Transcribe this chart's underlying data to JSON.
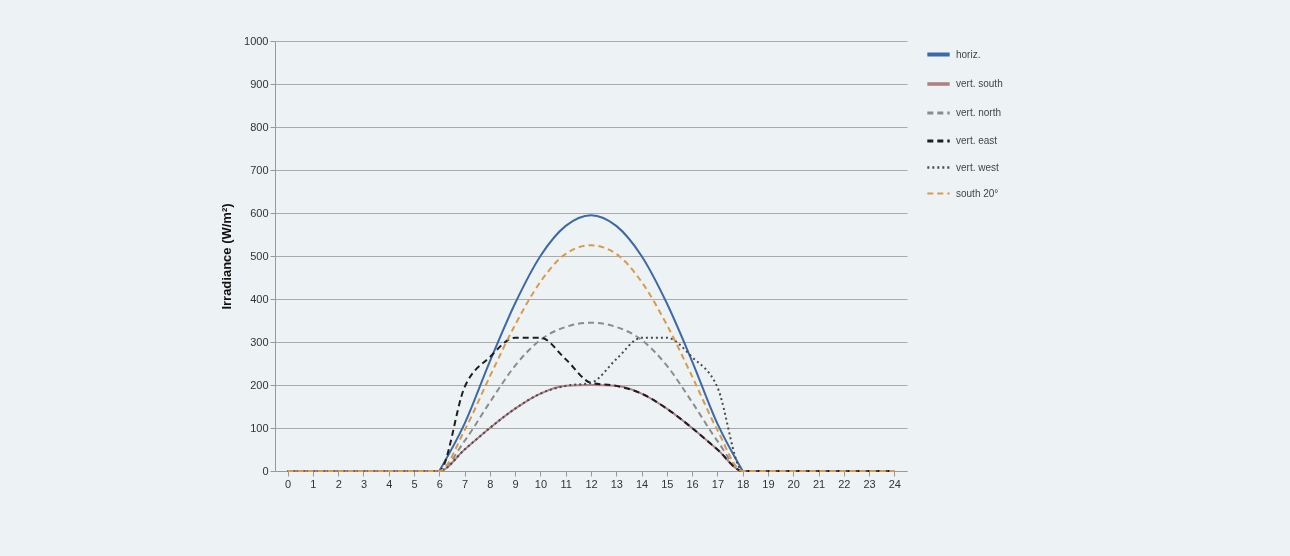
{
  "chart_data": {
    "type": "line",
    "ylabel": "Irradiance (W/m²)",
    "x": [
      0,
      1,
      2,
      3,
      4,
      5,
      6,
      7,
      8,
      9,
      10,
      11,
      12,
      13,
      14,
      15,
      16,
      17,
      18,
      19,
      20,
      21,
      22,
      23,
      24
    ],
    "xlim": [
      -0.5,
      24.5
    ],
    "xticks": [
      0,
      1,
      2,
      3,
      4,
      5,
      6,
      7,
      8,
      9,
      10,
      11,
      12,
      13,
      14,
      15,
      16,
      17,
      18,
      19,
      20,
      21,
      22,
      23,
      24
    ],
    "ylim": [
      0,
      1000
    ],
    "yticks": [
      0,
      100,
      200,
      300,
      400,
      500,
      600,
      700,
      800,
      900,
      1000
    ],
    "grid": "y",
    "legend": "right",
    "marker": "none",
    "series": [
      {
        "name": "horiz.",
        "color": "#3d69a6",
        "line_style": "solid",
        "values": [
          null,
          null,
          null,
          null,
          null,
          null,
          0,
          110,
          255,
          390,
          500,
          570,
          595,
          570,
          500,
          390,
          255,
          110,
          0,
          null,
          null,
          null,
          null,
          null,
          null
        ]
      },
      {
        "name": "vert. south",
        "color": "#b27f86",
        "line_style": "solid",
        "values": [
          0,
          0,
          0,
          0,
          0,
          0,
          0,
          50,
          100,
          145,
          180,
          198,
          200,
          198,
          180,
          145,
          100,
          50,
          0,
          0,
          0,
          0,
          0,
          0,
          0
        ]
      },
      {
        "name": "vert. north",
        "color": "#8c8c8c",
        "line_style": "dashed",
        "values": [
          0,
          0,
          0,
          0,
          0,
          0,
          0,
          70,
          160,
          245,
          305,
          335,
          345,
          335,
          305,
          245,
          160,
          70,
          0,
          0,
          0,
          0,
          0,
          0,
          0
        ]
      },
      {
        "name": "vert. east",
        "color": "#1e1e1e",
        "line_style": "dashed",
        "values": [
          0,
          0,
          0,
          0,
          0,
          0,
          0,
          195,
          265,
          310,
          310,
          260,
          205,
          198,
          180,
          145,
          100,
          50,
          0,
          0,
          0,
          0,
          0,
          0,
          0
        ]
      },
      {
        "name": "vert. west",
        "color": "#4a4a4a",
        "line_style": "dotted",
        "values": [
          0,
          0,
          0,
          0,
          0,
          0,
          0,
          50,
          100,
          145,
          180,
          198,
          205,
          260,
          310,
          310,
          265,
          195,
          0,
          0,
          0,
          0,
          0,
          0,
          0
        ]
      },
      {
        "name": "south 20°",
        "color": "#d99a4a",
        "line_style": "dashed",
        "values": [
          0,
          0,
          0,
          0,
          0,
          0,
          0,
          95,
          220,
          340,
          440,
          505,
          525,
          505,
          440,
          340,
          220,
          95,
          0,
          0,
          0,
          0,
          0,
          0,
          0
        ]
      }
    ]
  }
}
